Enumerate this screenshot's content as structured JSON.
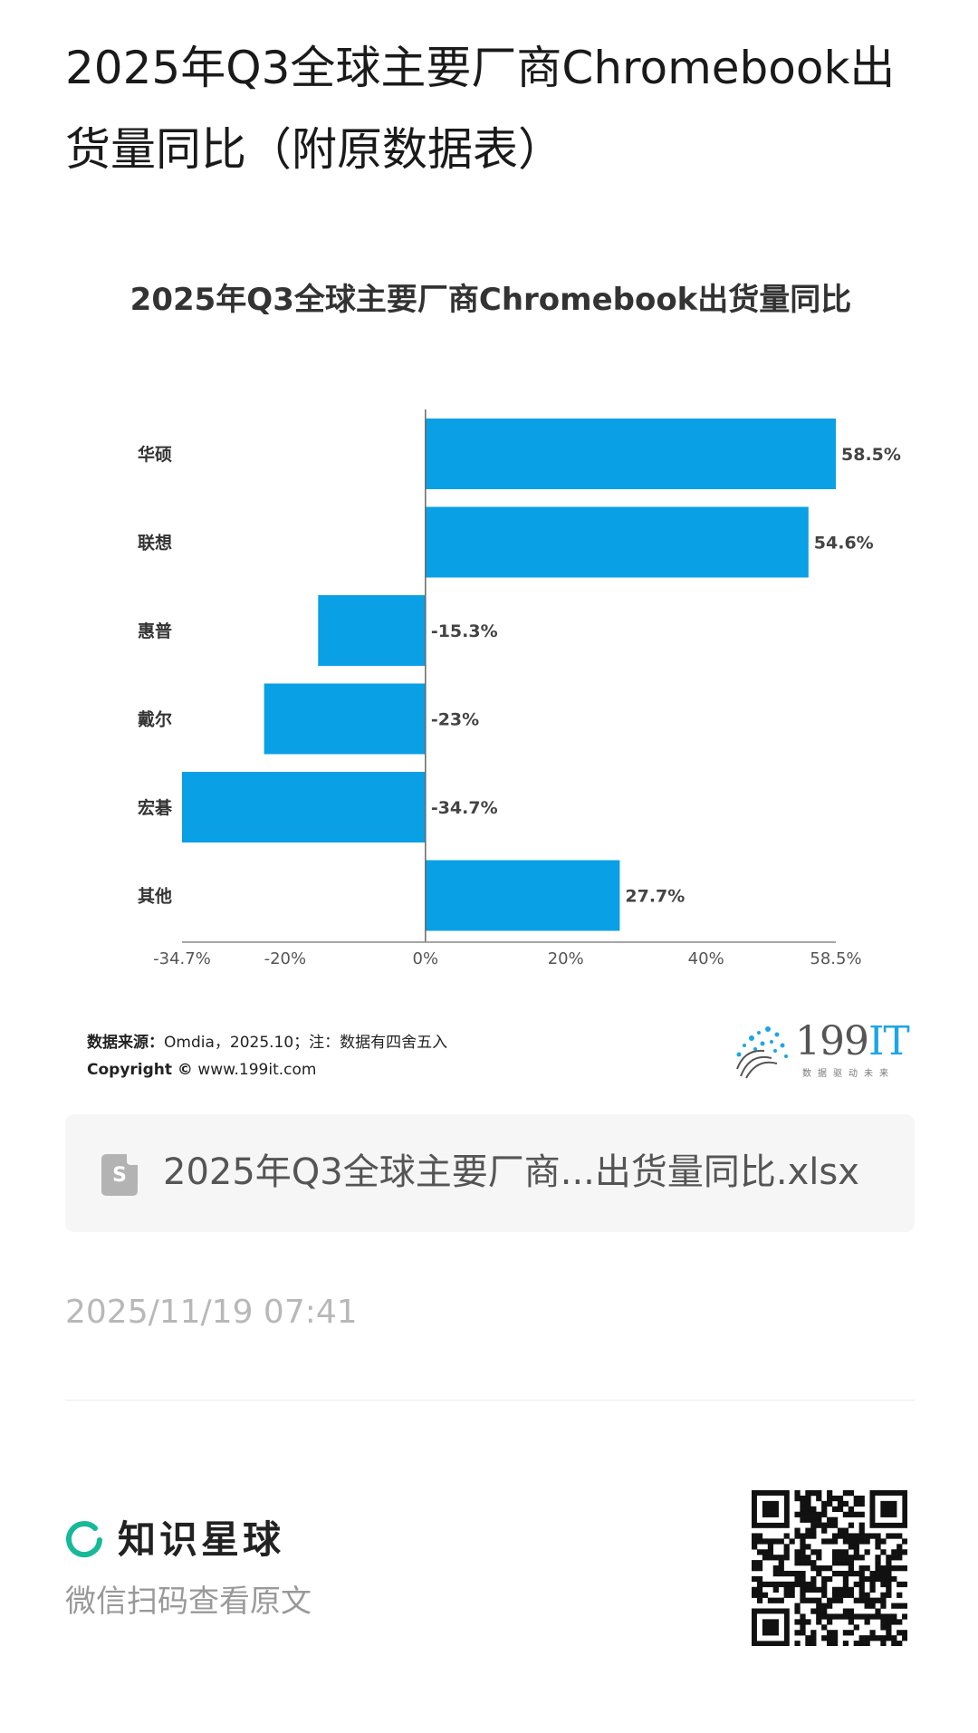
{
  "page": {
    "title": "2025年Q3全球主要厂商Chromebook出货量同比（附原数据表）"
  },
  "chart_data": {
    "type": "bar",
    "orientation": "horizontal",
    "title": "2025年Q3全球主要厂商Chromebook出货量同比",
    "categories": [
      "华硕",
      "联想",
      "惠普",
      "戴尔",
      "宏碁",
      "其他"
    ],
    "values": [
      58.5,
      54.6,
      -15.3,
      -23,
      -34.7,
      27.7
    ],
    "value_labels": [
      "58.5%",
      "54.6%",
      "-15.3%",
      "-23%",
      "-34.7%",
      "27.7%"
    ],
    "x_ticks": [
      -34.7,
      -20,
      0,
      20,
      40,
      58.5
    ],
    "x_tick_labels": [
      "-34.7%",
      "-20%",
      "0%",
      "20%",
      "40%",
      "58.5%"
    ],
    "xlim": [
      -34.7,
      58.5
    ],
    "bar_color": "#0aa0e6",
    "grid": false,
    "legend": "none"
  },
  "source": {
    "label": "数据来源：",
    "text": "Omdia，2025.10；注：数据有四舍五入",
    "copyright_label": "Copyright ©",
    "copyright_text": "www.199it.com"
  },
  "logo": {
    "brand_number": "199",
    "brand_it": "IT",
    "slogan": "数据驱动未来"
  },
  "attachment": {
    "icon": "spreadsheet-file-icon",
    "icon_letter": "S",
    "file_name": "2025年Q3全球主要厂商...出货量同比.xlsx"
  },
  "timestamp": "2025/11/19 07:41",
  "footer": {
    "app_name": "知识星球",
    "scan_hint": "微信扫码查看原文",
    "accent": "#16b998"
  }
}
